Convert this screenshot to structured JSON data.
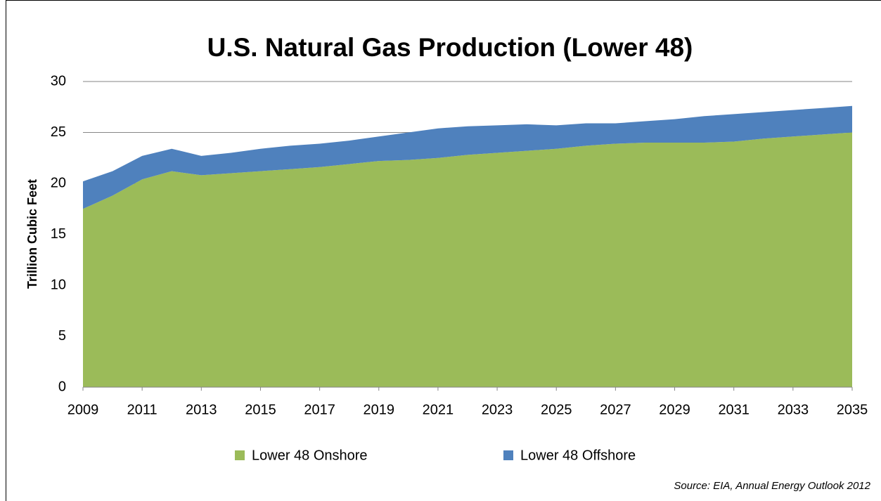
{
  "chart_data": {
    "type": "stacked_area",
    "title": "U.S. Natural Gas Production (Lower 48)",
    "y_label": "Trillion Cubic Feet",
    "source": "Source: EIA, Annual Energy Outlook 2012",
    "x": [
      2009,
      2010,
      2011,
      2012,
      2013,
      2014,
      2015,
      2016,
      2017,
      2018,
      2019,
      2020,
      2021,
      2022,
      2023,
      2024,
      2025,
      2026,
      2027,
      2028,
      2029,
      2030,
      2031,
      2032,
      2033,
      2034,
      2035
    ],
    "series": [
      {
        "name": "Lower 48 Onshore",
        "color": "#9bbb59",
        "values": [
          17.5,
          18.8,
          20.4,
          21.2,
          20.8,
          21.0,
          21.2,
          21.4,
          21.6,
          21.9,
          22.2,
          22.3,
          22.5,
          22.8,
          23.0,
          23.2,
          23.4,
          23.7,
          23.9,
          24.0,
          24.0,
          24.0,
          24.1,
          24.4,
          24.6,
          24.8,
          25.0
        ]
      },
      {
        "name": "Lower 48 Offshore",
        "color": "#4f81bd",
        "values": [
          2.7,
          2.4,
          2.3,
          2.2,
          1.9,
          2.0,
          2.2,
          2.3,
          2.3,
          2.3,
          2.4,
          2.7,
          2.9,
          2.8,
          2.7,
          2.6,
          2.3,
          2.2,
          2.0,
          2.1,
          2.3,
          2.6,
          2.7,
          2.6,
          2.6,
          2.6,
          2.6
        ]
      }
    ],
    "xlim": [
      2009,
      2035
    ],
    "xticks": [
      2009,
      2011,
      2013,
      2015,
      2017,
      2019,
      2021,
      2023,
      2025,
      2027,
      2029,
      2031,
      2033,
      2035
    ],
    "ylim": [
      0,
      30
    ],
    "yticks": [
      0,
      5,
      10,
      15,
      20,
      25,
      30
    ],
    "grid": true,
    "legend": "bottom"
  }
}
